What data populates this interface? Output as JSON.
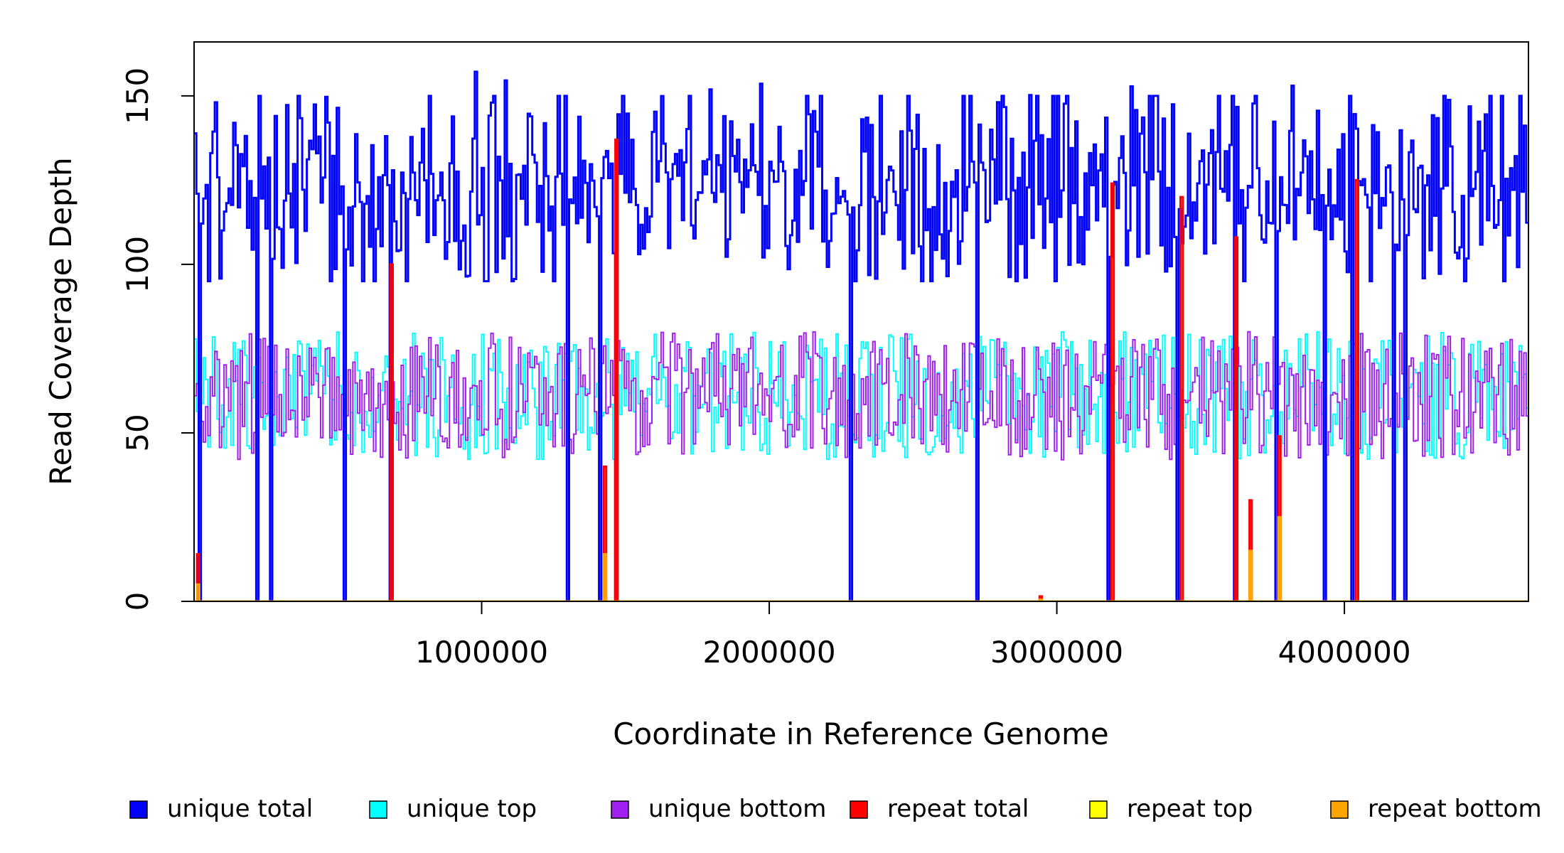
{
  "chart_data": {
    "type": "line",
    "xlabel": "Coordinate in Reference Genome",
    "ylabel": "Read Coverage Depth",
    "xlim": [
      0,
      4640000
    ],
    "ylim": [
      0,
      166
    ],
    "x_ticks": [
      1000000,
      2000000,
      3000000,
      4000000
    ],
    "x_tick_labels": [
      "1000000",
      "2000000",
      "3000000",
      "4000000"
    ],
    "y_ticks": [
      0,
      50,
      100,
      150
    ],
    "y_tick_labels": [
      "0",
      "50",
      "100",
      "150"
    ],
    "grid": false,
    "legend_position": "bottom",
    "series": [
      {
        "name": "unique total",
        "color": "#0000ff"
      },
      {
        "name": "unique top",
        "color": "#00ffff"
      },
      {
        "name": "unique bottom",
        "color": "#a020f0"
      },
      {
        "name": "repeat total",
        "color": "#ff0000"
      },
      {
        "name": "repeat top",
        "color": "#ffff00"
      },
      {
        "name": "repeat bottom",
        "color": "#ffa500"
      }
    ],
    "dropout_x": [
      20000,
      220000,
      268000,
      520000,
      683000,
      1300000,
      1410000,
      1465000,
      2280000,
      2720000,
      3180000,
      3420000,
      3620000,
      3760000,
      3930000,
      4030000,
      4170000,
      4210000
    ],
    "repeat_peaks": [
      {
        "x": 10000,
        "total": 14,
        "bottom": 5
      },
      {
        "x": 683000,
        "total": 100,
        "bottom": 0
      },
      {
        "x": 1425000,
        "total": 40,
        "bottom": 14
      },
      {
        "x": 1465000,
        "total": 137,
        "bottom": 0
      },
      {
        "x": 2940000,
        "total": 1.5,
        "bottom": 0.5
      },
      {
        "x": 3190000,
        "total": 124,
        "bottom": 0
      },
      {
        "x": 3430000,
        "total": 120,
        "bottom": 0
      },
      {
        "x": 3620000,
        "total": 108,
        "bottom": 0
      },
      {
        "x": 3670000,
        "total": 30,
        "bottom": 15
      },
      {
        "x": 3770000,
        "total": 49,
        "bottom": 25
      },
      {
        "x": 4040000,
        "total": 125,
        "bottom": 0
      }
    ],
    "bin_width": 8000,
    "unique_total_range": [
      95,
      150
    ],
    "unique_top_range": [
      42,
      80
    ],
    "unique_bottom_range": [
      42,
      80
    ]
  }
}
